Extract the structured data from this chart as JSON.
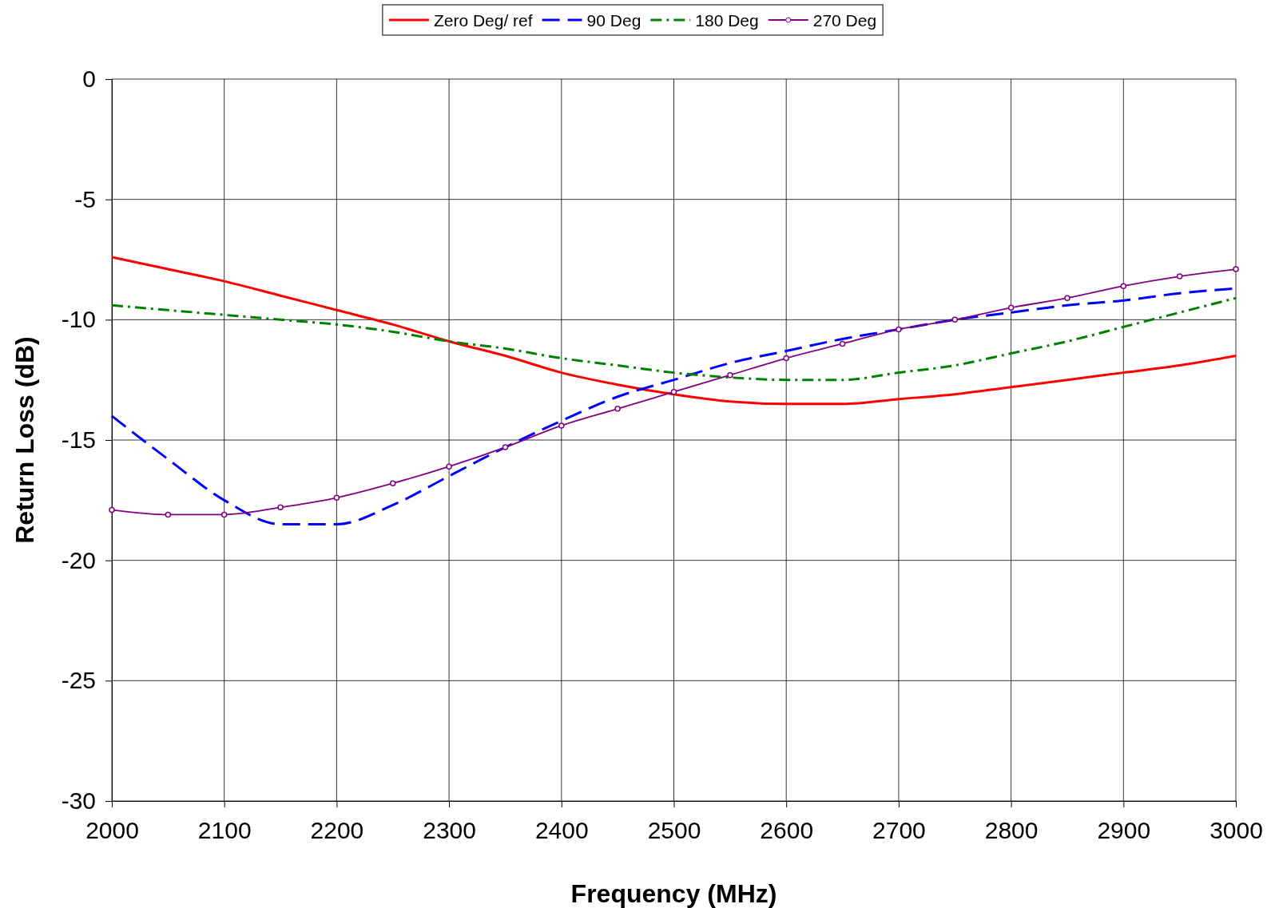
{
  "chart_data": {
    "type": "line",
    "xlabel": "Frequency (MHz)",
    "ylabel": "Return Loss (dB)",
    "x": [
      2000,
      2050,
      2100,
      2150,
      2200,
      2250,
      2300,
      2350,
      2400,
      2450,
      2500,
      2550,
      2600,
      2650,
      2700,
      2750,
      2800,
      2850,
      2900,
      2950,
      3000
    ],
    "series": [
      {
        "name": "Zero Deg/ ref",
        "color": "#ff0000",
        "line_style": "solid",
        "values": [
          -7.4,
          -7.9,
          -8.4,
          -9.0,
          -9.6,
          -10.2,
          -10.9,
          -11.5,
          -12.2,
          -12.7,
          -13.1,
          -13.4,
          -13.5,
          -13.5,
          -13.3,
          -13.1,
          -12.8,
          -12.5,
          -12.2,
          -11.9,
          -11.5
        ]
      },
      {
        "name": "90 Deg",
        "color": "#0000ff",
        "line_style": "dashed",
        "values": [
          -14.0,
          -15.8,
          -17.5,
          -18.5,
          -18.5,
          -17.7,
          -16.5,
          -15.3,
          -14.2,
          -13.2,
          -12.5,
          -11.8,
          -11.3,
          -10.8,
          -10.4,
          -10.0,
          -9.7,
          -9.4,
          -9.2,
          -8.9,
          -8.7
        ]
      },
      {
        "name": "180 Deg",
        "color": "#008000",
        "line_style": "dotted",
        "values": [
          -9.4,
          -9.6,
          -9.8,
          -10.0,
          -10.2,
          -10.5,
          -10.9,
          -11.2,
          -11.6,
          -11.9,
          -12.2,
          -12.4,
          -12.5,
          -12.5,
          -12.2,
          -11.9,
          -11.4,
          -10.9,
          -10.3,
          -9.7,
          -9.1
        ]
      },
      {
        "name": "270 Deg",
        "color": "#800080",
        "line_style": "solid",
        "marker": "circle",
        "values": [
          -17.9,
          -18.1,
          -18.1,
          -17.8,
          -17.4,
          -16.8,
          -16.1,
          -15.3,
          -14.4,
          -13.7,
          -13.0,
          -12.3,
          -11.6,
          -11.0,
          -10.4,
          -10.0,
          -9.5,
          -9.1,
          -8.6,
          -8.2,
          -7.9
        ]
      }
    ],
    "xlim": [
      2000,
      3000
    ],
    "xticks": [
      2000,
      2100,
      2200,
      2300,
      2400,
      2500,
      2600,
      2700,
      2800,
      2900,
      3000
    ],
    "ylim": [
      -30,
      0
    ],
    "yticks": [
      -30,
      -25,
      -20,
      -15,
      -10,
      -5,
      0
    ],
    "grid": true,
    "legend": "top"
  }
}
